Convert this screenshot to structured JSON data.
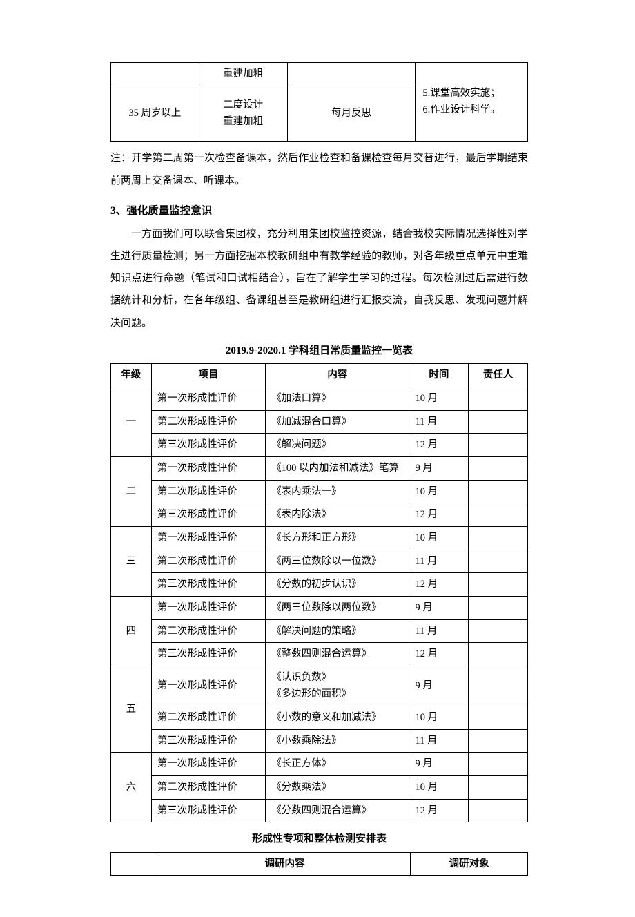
{
  "table1": {
    "row1": {
      "c2": "重建加粗",
      "c4": "5.课堂高效实施；"
    },
    "row2": {
      "c1": "35 周岁以上",
      "c2": "二度设计\n重建加粗",
      "c3": "每月反思",
      "c4": "6.作业设计科学。"
    }
  },
  "noteText": "注：开学第二周第一次检查备课本，然后作业检查和备课检查每月交替进行，最后学期结束前两周上交备课本、听课本。",
  "section3": {
    "heading": "3、强化质量监控意识",
    "body": "一方面我们可以联合集团校，充分利用集团校监控资源，结合我校实际情况选择性对学生进行质量检测；另一方面挖掘本校教研组中有教学经验的教师，对各年级重点单元中重难知识点进行命题（笔试和口试相结合），旨在了解学生学习的过程。每次检测过后需进行数据统计和分析，在各年级组、备课组甚至是教研组进行汇报交流，自我反思、发现问题并解决问题。"
  },
  "table2": {
    "title": "2019.9-2020.1 学科组日常质量监控一览表",
    "headers": {
      "grade": "年级",
      "item": "项目",
      "content": "内容",
      "time": "时间",
      "person": "责任人"
    },
    "groups": [
      {
        "grade": "一",
        "rows": [
          {
            "item": "第一次形成性评价",
            "content": "《加法口算》",
            "time": "10 月",
            "person": ""
          },
          {
            "item": "第二次形成性评价",
            "content": "《加减混合口算》",
            "time": "11 月",
            "person": ""
          },
          {
            "item": "第三次形成性评价",
            "content": "《解决问题》",
            "time": "12 月",
            "person": ""
          }
        ]
      },
      {
        "grade": "二",
        "rows": [
          {
            "item": "第一次形成性评价",
            "content": "《100 以内加法和减法》笔算",
            "time": "9 月",
            "person": ""
          },
          {
            "item": "第二次形成性评价",
            "content": "《表内乘法一》",
            "time": "10 月",
            "person": ""
          },
          {
            "item": "第三次形成性评价",
            "content": "《表内除法》",
            "time": "12 月",
            "person": ""
          }
        ]
      },
      {
        "grade": "三",
        "rows": [
          {
            "item": "第一次形成性评价",
            "content": "《长方形和正方形》",
            "time": "10 月",
            "person": ""
          },
          {
            "item": "第二次形成性评价",
            "content": "《两三位数除以一位数》",
            "time": "11 月",
            "person": ""
          },
          {
            "item": "第三次形成性评价",
            "content": "《分数的初步认识》",
            "time": "12 月",
            "person": ""
          }
        ]
      },
      {
        "grade": "四",
        "rows": [
          {
            "item": "第一次形成性评价",
            "content": "《两三位数除以两位数》",
            "time": "9 月",
            "person": ""
          },
          {
            "item": "第二次形成性评价",
            "content": "《解决问题的策略》",
            "time": "11 月",
            "person": ""
          },
          {
            "item": "第三次形成性评价",
            "content": "《整数四则混合运算》",
            "time": "12 月",
            "person": ""
          }
        ]
      },
      {
        "grade": "五",
        "rows": [
          {
            "item": "第一次形成性评价",
            "content": "《认识负数》\n《多边形的面积》",
            "time": "9 月",
            "person": ""
          },
          {
            "item": "第二次形成性评价",
            "content": "《小数的意义和加减法》",
            "time": "10 月",
            "person": ""
          },
          {
            "item": "第三次形成性评价",
            "content": "《小数乘除法》",
            "time": "11 月",
            "person": ""
          }
        ]
      },
      {
        "grade": "六",
        "rows": [
          {
            "item": "第一次形成性评价",
            "content": "《长正方体》",
            "time": "9 月",
            "person": ""
          },
          {
            "item": "第二次形成性评价",
            "content": "《分数乘法》",
            "time": "10 月",
            "person": ""
          },
          {
            "item": "第三次形成性评价",
            "content": "《分数四则混合运算》",
            "time": "12 月",
            "person": ""
          }
        ]
      }
    ]
  },
  "table3": {
    "title": "形成性专项和整体检测安排表",
    "headers": {
      "content": "调研内容",
      "target": "调研对象"
    }
  }
}
